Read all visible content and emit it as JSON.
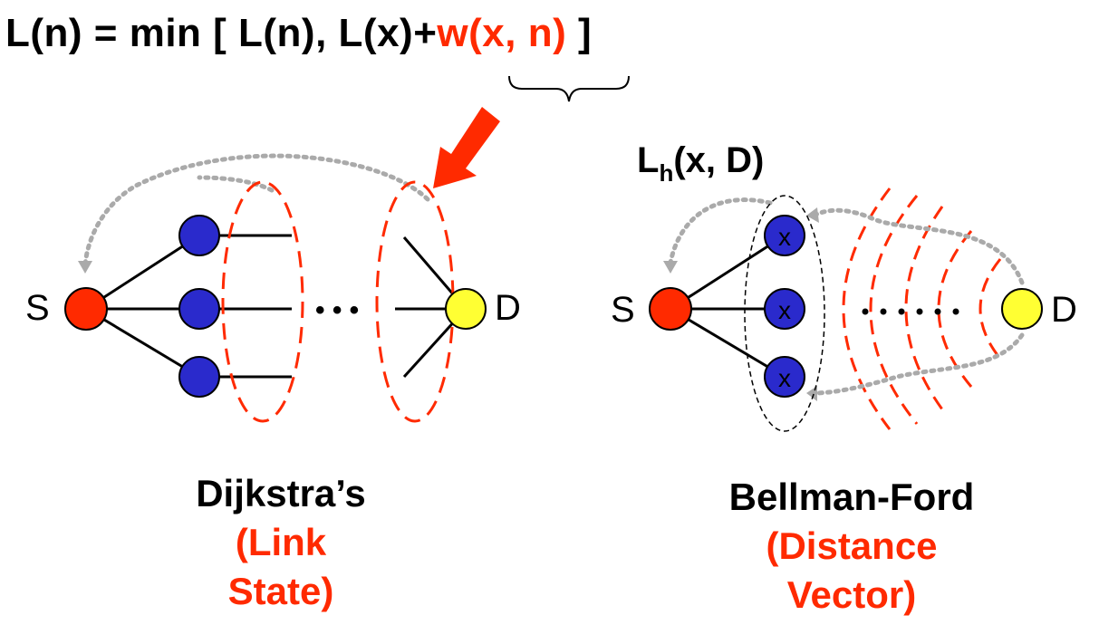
{
  "formula": {
    "part_black_1": "L(n) = min [ L(n), L(x)+",
    "part_red": "w(x, n)",
    "part_black_2": " ]"
  },
  "left_diagram": {
    "source_label": "S",
    "dest_label": "D",
    "ellipsis": "• • •",
    "caption_title": "Dijkstra’s",
    "caption_sub_line1": "(Link",
    "caption_sub_line2": "State)"
  },
  "right_diagram": {
    "source_label": "S",
    "dest_label": "D",
    "node_label": "x",
    "lh_main": "L",
    "lh_sub": "h",
    "lh_rest": "(x, D)",
    "caption_title": "Bellman-Ford",
    "caption_sub_line1": "(Distance",
    "caption_sub_line2": "Vector)"
  },
  "colors": {
    "source_node": "#ff2a00",
    "dest_node": "#ffff33",
    "middle_node": "#2a2acc",
    "frontier_dash": "#ff2a00",
    "arrow_dotted": "#aaaaaa",
    "highlight_text": "#ff2a00"
  }
}
